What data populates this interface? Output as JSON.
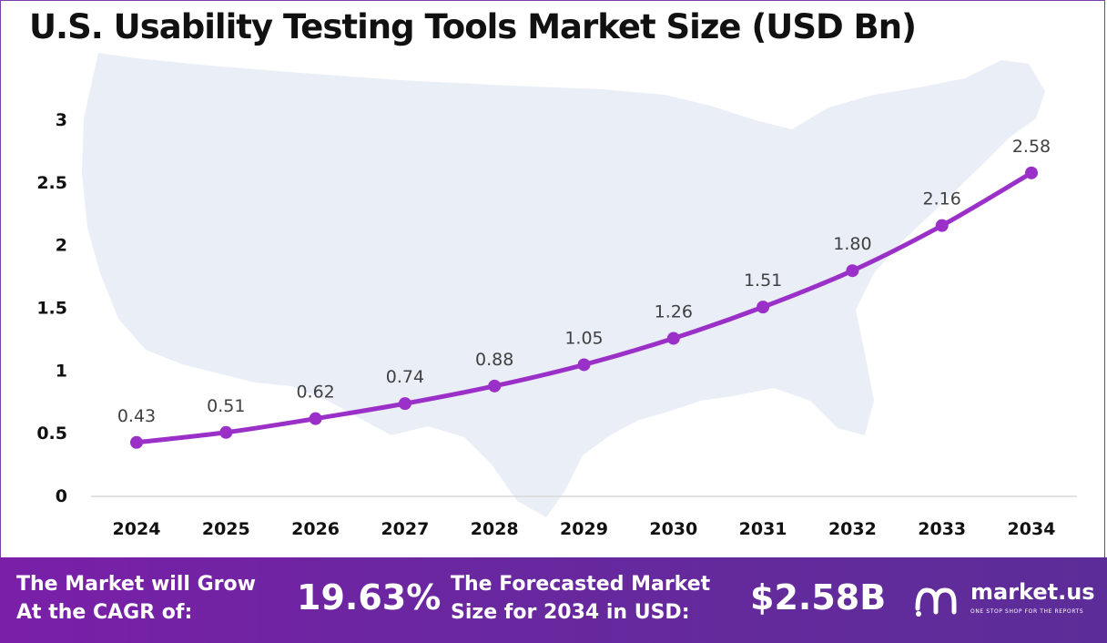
{
  "header": {
    "title": "U.S. Usability Testing Tools Market Size (USD Bn)"
  },
  "chart_data": {
    "type": "line",
    "title": "U.S. Usability Testing Tools Market Size (USD Bn)",
    "xlabel": "",
    "ylabel": "",
    "categories": [
      "2024",
      "2025",
      "2026",
      "2027",
      "2028",
      "2029",
      "2030",
      "2031",
      "2032",
      "2033",
      "2034"
    ],
    "values": [
      0.43,
      0.51,
      0.62,
      0.74,
      0.88,
      1.05,
      1.26,
      1.51,
      1.8,
      2.16,
      2.58
    ],
    "data_labels": [
      "0.43",
      "0.51",
      "0.62",
      "0.74",
      "0.88",
      "1.05",
      "1.26",
      "1.51",
      "1.80",
      "2.16",
      "2.58"
    ],
    "yticks": [
      "0",
      "0.5",
      "1",
      "1.5",
      "2",
      "2.5",
      "3"
    ],
    "ylim": [
      0,
      3
    ],
    "grid": false,
    "legend": "none",
    "line_color": "#9b30c9",
    "marker_color": "#9b30c9",
    "axis_color": "#d9d9d9",
    "background_map_color": "#e9eef7"
  },
  "footer": {
    "cagr_label": "The Market will Grow\nAt the CAGR of:",
    "cagr_value": "19.63%",
    "forecast_label": "The Forecasted Market\nSize for 2034 in USD:",
    "forecast_value": "$2.58B",
    "brand_name": "market.us",
    "brand_tagline": "ONE STOP SHOP FOR THE REPORTS",
    "background_color": "#6a27a0"
  }
}
